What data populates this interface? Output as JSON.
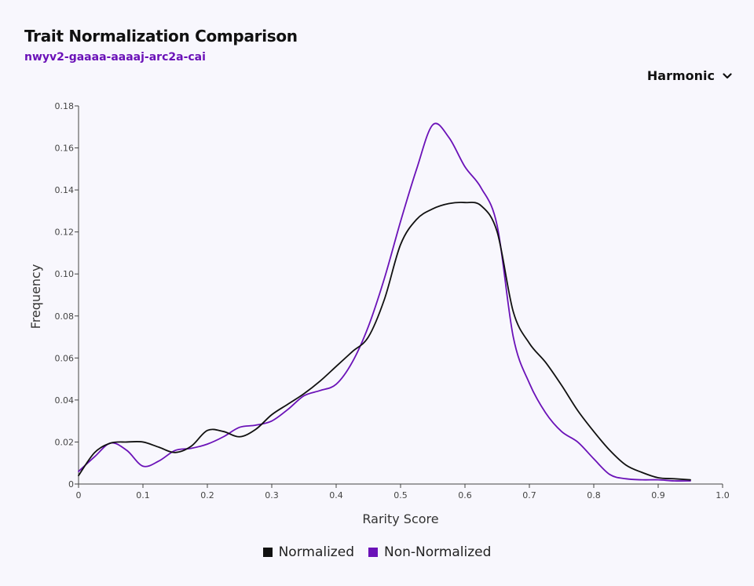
{
  "header": {
    "title": "Trait Normalization Comparison",
    "subtitle": "nwyv2-gaaaa-aaaaj-arc2a-cai"
  },
  "method_select": {
    "selected": "Harmonic",
    "icon": "chevron-down-icon"
  },
  "colors": {
    "normalized": "#111111",
    "non_normalized": "#6b12b8"
  },
  "chart_data": {
    "type": "area",
    "xlabel": "Rarity Score",
    "ylabel": "Frequency",
    "xlim": [
      0,
      1.0
    ],
    "ylim": [
      0,
      0.18
    ],
    "x_ticks": [
      "0",
      "0.1",
      "0.2",
      "0.3",
      "0.4",
      "0.5",
      "0.6",
      "0.7",
      "0.8",
      "0.9",
      "1.0"
    ],
    "y_ticks": [
      "0",
      "0.02",
      "0.04",
      "0.06",
      "0.08",
      "0.10",
      "0.12",
      "0.14",
      "0.16",
      "0.18"
    ],
    "grid": false,
    "legend_position": "bottom",
    "series": [
      {
        "name": "Normalized",
        "points": [
          [
            0.0,
            0.004
          ],
          [
            0.025,
            0.015
          ],
          [
            0.05,
            0.0195
          ],
          [
            0.075,
            0.02
          ],
          [
            0.1,
            0.02
          ],
          [
            0.125,
            0.0175
          ],
          [
            0.15,
            0.015
          ],
          [
            0.175,
            0.018
          ],
          [
            0.2,
            0.0255
          ],
          [
            0.225,
            0.025
          ],
          [
            0.25,
            0.0225
          ],
          [
            0.275,
            0.026
          ],
          [
            0.3,
            0.033
          ],
          [
            0.325,
            0.038
          ],
          [
            0.35,
            0.043
          ],
          [
            0.375,
            0.049
          ],
          [
            0.4,
            0.056
          ],
          [
            0.425,
            0.063
          ],
          [
            0.45,
            0.07
          ],
          [
            0.475,
            0.088
          ],
          [
            0.5,
            0.114
          ],
          [
            0.525,
            0.126
          ],
          [
            0.55,
            0.131
          ],
          [
            0.575,
            0.1335
          ],
          [
            0.6,
            0.134
          ],
          [
            0.625,
            0.1325
          ],
          [
            0.65,
            0.12
          ],
          [
            0.675,
            0.082
          ],
          [
            0.7,
            0.067
          ],
          [
            0.725,
            0.058
          ],
          [
            0.75,
            0.047
          ],
          [
            0.775,
            0.035
          ],
          [
            0.8,
            0.025
          ],
          [
            0.825,
            0.016
          ],
          [
            0.85,
            0.009
          ],
          [
            0.875,
            0.0055
          ],
          [
            0.9,
            0.003
          ],
          [
            0.925,
            0.0025
          ],
          [
            0.95,
            0.002
          ]
        ]
      },
      {
        "name": "Non-Normalized",
        "points": [
          [
            0.0,
            0.006
          ],
          [
            0.025,
            0.013
          ],
          [
            0.05,
            0.0195
          ],
          [
            0.075,
            0.016
          ],
          [
            0.1,
            0.0085
          ],
          [
            0.125,
            0.011
          ],
          [
            0.15,
            0.016
          ],
          [
            0.175,
            0.017
          ],
          [
            0.2,
            0.019
          ],
          [
            0.225,
            0.0225
          ],
          [
            0.25,
            0.027
          ],
          [
            0.275,
            0.028
          ],
          [
            0.3,
            0.03
          ],
          [
            0.325,
            0.0355
          ],
          [
            0.35,
            0.042
          ],
          [
            0.375,
            0.0445
          ],
          [
            0.4,
            0.0475
          ],
          [
            0.425,
            0.058
          ],
          [
            0.45,
            0.075
          ],
          [
            0.475,
            0.098
          ],
          [
            0.5,
            0.125
          ],
          [
            0.525,
            0.15
          ],
          [
            0.55,
            0.171
          ],
          [
            0.575,
            0.165
          ],
          [
            0.6,
            0.151
          ],
          [
            0.625,
            0.141
          ],
          [
            0.65,
            0.123
          ],
          [
            0.675,
            0.07
          ],
          [
            0.7,
            0.048
          ],
          [
            0.725,
            0.034
          ],
          [
            0.75,
            0.025
          ],
          [
            0.775,
            0.02
          ],
          [
            0.8,
            0.012
          ],
          [
            0.825,
            0.0045
          ],
          [
            0.85,
            0.0025
          ],
          [
            0.875,
            0.002
          ],
          [
            0.9,
            0.002
          ],
          [
            0.925,
            0.0015
          ],
          [
            0.95,
            0.0015
          ]
        ]
      }
    ]
  }
}
